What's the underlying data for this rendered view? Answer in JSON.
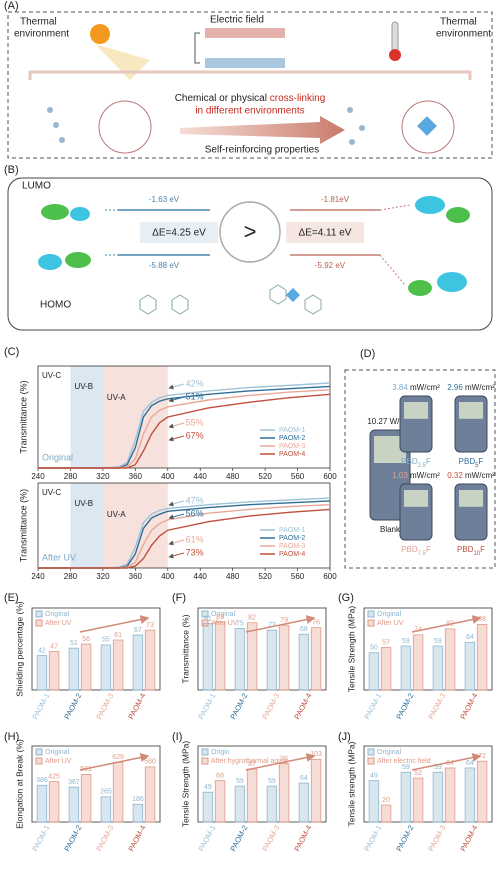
{
  "panel_a": {
    "label": "(A)",
    "left_env": [
      "Thermal",
      "environment"
    ],
    "field": "Electric field",
    "right_env": [
      "Thermal",
      "environment"
    ],
    "line1": "Chemical or physical",
    "line1_red": "cross-linking",
    "line2": "in different environments",
    "bottom": "Self-reinforcing properties"
  },
  "panel_b": {
    "label": "(B)",
    "lumo": "LUMO",
    "homo": "HOMO",
    "left_lumo": "-1.63 eV",
    "left_homo": "-5.88 eV",
    "left_gap": "ΔE=4.25 eV",
    "compare": ">",
    "right_lumo": "-1.81eV",
    "right_homo": "-5.92 eV",
    "right_gap": "ΔE=4.11 eV"
  },
  "panel_c": {
    "label": "(C)"
  },
  "panel_d": {
    "label": "(D)",
    "meters": [
      {
        "reading": "10.27",
        "unit": "W/cm²",
        "label": [
          "Blank"
        ],
        "color": "#222222"
      },
      {
        "reading": "3.84",
        "unit": "mW/cm²",
        "label": [
          "PBD",
          "2.5",
          "F"
        ],
        "color": "#7fa9c6"
      },
      {
        "reading": "2.96",
        "unit": "mW/cm²",
        "label": [
          "PBD",
          "5",
          "F"
        ],
        "color": "#2f6e99"
      },
      {
        "reading": "1.03",
        "unit": "mW/cm²",
        "label": [
          "PBD",
          "7.5",
          "F"
        ],
        "color": "#e0a08e"
      },
      {
        "reading": "0.32",
        "unit": "mW/cm²",
        "label": [
          "PBD",
          "10",
          "F"
        ],
        "color": "#c0503c"
      }
    ]
  },
  "chart_data": [
    {
      "type": "line",
      "y_label": "Transmittance (%)",
      "condition": "Original",
      "xlim": [
        240,
        600
      ],
      "ylim": [
        0,
        90
      ],
      "xticks": [
        240,
        280,
        320,
        360,
        400,
        440,
        480,
        520,
        560,
        600
      ],
      "regions": [
        {
          "label": "UV-C",
          "range": [
            240,
            280
          ],
          "color": "#ffffff"
        },
        {
          "label": "UV-B",
          "range": [
            280,
            320
          ],
          "color": "#dbe8f1"
        },
        {
          "label": "UV-A",
          "range": [
            320,
            400
          ],
          "color": "#f6e1dc"
        }
      ],
      "annotations": [
        "42%",
        "51%",
        "55%",
        "67%"
      ],
      "x": [
        240,
        280,
        320,
        340,
        350,
        360,
        370,
        380,
        390,
        400,
        450,
        500,
        550,
        600
      ],
      "series": [
        {
          "name": "PAOM-1",
          "color": "#9ec3d8",
          "values": [
            0,
            0,
            0,
            1,
            5,
            25,
            50,
            58,
            62,
            64,
            68,
            71,
            73,
            75
          ]
        },
        {
          "name": "PAOM-2",
          "color": "#2f6e99",
          "values": [
            0,
            0,
            0,
            0,
            3,
            18,
            45,
            55,
            59,
            61,
            65,
            68,
            70,
            72
          ]
        },
        {
          "name": "PAOM-3",
          "color": "#e8a898",
          "values": [
            0,
            0,
            0,
            0,
            1,
            8,
            30,
            45,
            51,
            54,
            60,
            64,
            67,
            69
          ]
        },
        {
          "name": "PAOM-4",
          "color": "#c0503c",
          "values": [
            0,
            0,
            0,
            0,
            0,
            3,
            15,
            30,
            40,
            45,
            53,
            58,
            62,
            65
          ]
        }
      ]
    },
    {
      "type": "line",
      "y_label": "Transmittance (%)",
      "condition": "After UV",
      "xlim": [
        240,
        600
      ],
      "ylim": [
        0,
        90
      ],
      "xticks": [
        240,
        280,
        320,
        360,
        400,
        440,
        480,
        520,
        560,
        600
      ],
      "regions": [
        {
          "label": "UV-C",
          "range": [
            240,
            280
          ],
          "color": "#ffffff"
        },
        {
          "label": "UV-B",
          "range": [
            280,
            320
          ],
          "color": "#dbe8f1"
        },
        {
          "label": "UV-A",
          "range": [
            320,
            400
          ],
          "color": "#f6e1dc"
        }
      ],
      "annotations": [
        "47%",
        "56%",
        "61%",
        "73%"
      ],
      "x": [
        240,
        280,
        320,
        340,
        350,
        360,
        370,
        380,
        390,
        400,
        450,
        500,
        550,
        600
      ],
      "series": [
        {
          "name": "PAOM-1",
          "color": "#9ec3d8",
          "values": [
            0,
            0,
            0,
            1,
            4,
            22,
            48,
            57,
            61,
            63,
            67,
            70,
            72,
            74
          ]
        },
        {
          "name": "PAOM-2",
          "color": "#2f6e99",
          "values": [
            0,
            0,
            0,
            0,
            2,
            15,
            42,
            53,
            57,
            60,
            64,
            67,
            69,
            71
          ]
        },
        {
          "name": "PAOM-3",
          "color": "#e8a898",
          "values": [
            0,
            0,
            0,
            0,
            1,
            6,
            25,
            40,
            47,
            51,
            58,
            62,
            65,
            67
          ]
        },
        {
          "name": "PAOM-4",
          "color": "#c0503c",
          "values": [
            0,
            0,
            0,
            0,
            0,
            2,
            10,
            24,
            34,
            40,
            49,
            55,
            59,
            62
          ]
        }
      ]
    },
    {
      "type": "bar",
      "panel_label": "(E)",
      "y_label": "Shielding percentage (%)",
      "ylim": [
        0,
        100
      ],
      "categories": [
        "PAOM-1",
        "PAOM-2",
        "PAOM-3",
        "PAOM-4"
      ],
      "category_colors": [
        "#9ec3d8",
        "#2f6e99",
        "#e8a898",
        "#c0503c"
      ],
      "series": [
        {
          "name": "Original",
          "color": "#8fb6d0",
          "values": [
            42,
            51,
            55,
            67
          ]
        },
        {
          "name": "After UV",
          "color": "#e39a88",
          "values": [
            47,
            56,
            61,
            73
          ]
        }
      ]
    },
    {
      "type": "bar",
      "panel_label": "(F)",
      "y_label": "Transmittance (%)",
      "ylim": [
        0,
        100
      ],
      "categories": [
        "PAOM-1",
        "PAOM-2",
        "PAOM-3",
        "PAOM-4"
      ],
      "category_colors": [
        "#9ec3d8",
        "#2f6e99",
        "#e8a898",
        "#c0503c"
      ],
      "series": [
        {
          "name": "Original",
          "color": "#8fb6d0",
          "values": [
            81,
            75,
            73,
            68
          ]
        },
        {
          "name": "After UV",
          "color": "#e39a88",
          "values": [
            83,
            82,
            79,
            76
          ]
        }
      ]
    },
    {
      "type": "bar",
      "panel_label": "(G)",
      "y_label": "Tensile Strength (MPa)",
      "ylim": [
        0,
        110
      ],
      "categories": [
        "PAOM-1",
        "PAOM-2",
        "PAOM-3",
        "PAOM-4"
      ],
      "category_colors": [
        "#9ec3d8",
        "#2f6e99",
        "#e8a898",
        "#c0503c"
      ],
      "series": [
        {
          "name": "Original",
          "color": "#8fb6d0",
          "values": [
            50,
            59,
            59,
            64
          ]
        },
        {
          "name": "After UV",
          "color": "#e39a88",
          "values": [
            57,
            74,
            82,
            88
          ]
        }
      ]
    },
    {
      "type": "bar",
      "panel_label": "(H)",
      "y_label": "Elongation at Break (%)",
      "ylim": [
        0,
        800
      ],
      "categories": [
        "PAOM-1",
        "PAOM-2",
        "PAOM-3",
        "PAOM-4"
      ],
      "category_colors": [
        "#9ec3d8",
        "#2f6e99",
        "#e8a898",
        "#c0503c"
      ],
      "series": [
        {
          "name": "Original",
          "color": "#8fb6d0",
          "values": [
            386,
            367,
            265,
            186
          ]
        },
        {
          "name": "After UV",
          "color": "#e39a88",
          "values": [
            425,
            501,
            629,
            580
          ]
        }
      ]
    },
    {
      "type": "bar",
      "panel_label": "(I)",
      "y_label": "Tensile Strength (MPa)",
      "ylim": [
        0,
        125
      ],
      "categories": [
        "PAOM-1",
        "PAOM-2",
        "PAOM-3",
        "PAOM-4"
      ],
      "category_colors": [
        "#9ec3d8",
        "#2f6e99",
        "#e8a898",
        "#c0503c"
      ],
      "series": [
        {
          "name": "Origin",
          "color": "#8fb6d0",
          "values": [
            49,
            59,
            59,
            64
          ]
        },
        {
          "name": "After hygrothermal aging",
          "color": "#e39a88",
          "values": [
            68,
            87,
            96,
            103
          ]
        }
      ]
    },
    {
      "type": "bar",
      "panel_label": "(J)",
      "y_label": "Tensile strength (MPa)",
      "ylim": [
        0,
        90
      ],
      "categories": [
        "PAOM-1",
        "PAOM-2",
        "PAOM-3",
        "PAOM-4"
      ],
      "category_colors": [
        "#9ec3d8",
        "#2f6e99",
        "#e8a898",
        "#c0503c"
      ],
      "series": [
        {
          "name": "Original",
          "color": "#8fb6d0",
          "values": [
            49,
            59,
            59,
            64
          ]
        },
        {
          "name": "After electric field",
          "color": "#e39a88",
          "values": [
            20,
            52,
            64,
            72
          ]
        }
      ]
    }
  ]
}
